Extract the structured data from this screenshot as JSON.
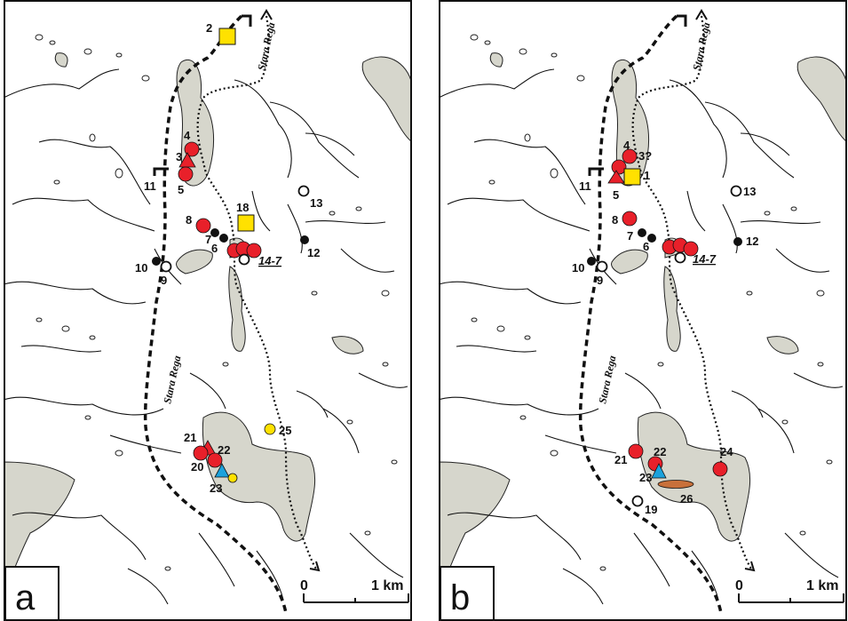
{
  "panels": [
    {
      "letter": "a",
      "river_label_top": "Stara Rega",
      "river_label_mid": "Stara Rega",
      "scale": {
        "zero": "0",
        "end": "1 km"
      },
      "sites": [
        {
          "label": "2",
          "type": "square"
        },
        {
          "label": "4",
          "type": "red"
        },
        {
          "label": "3",
          "type": "red-tri"
        },
        {
          "label": "5",
          "type": "red"
        },
        {
          "label": "11",
          "type": "tick"
        },
        {
          "label": "13",
          "type": "open"
        },
        {
          "label": "18",
          "type": "square"
        },
        {
          "label": "8",
          "type": "red"
        },
        {
          "label": "7",
          "type": "black"
        },
        {
          "label": "6",
          "type": "black"
        },
        {
          "label": "14-7",
          "type": "open"
        },
        {
          "label": "12",
          "type": "black"
        },
        {
          "label": "10",
          "type": "black"
        },
        {
          "label": "9",
          "type": "open"
        },
        {
          "label": "25",
          "type": "yellow"
        },
        {
          "label": "21",
          "type": "red-tri"
        },
        {
          "label": "22",
          "type": "red"
        },
        {
          "label": "20",
          "type": "red"
        },
        {
          "label": "23",
          "type": "blue-tri"
        }
      ]
    },
    {
      "letter": "b",
      "river_label_top": "Stara Rega",
      "river_label_mid": "Stara Rega",
      "scale": {
        "zero": "0",
        "end": "1 km"
      },
      "sites": [
        {
          "label": "4",
          "type": "red"
        },
        {
          "label": "3?",
          "type": "red"
        },
        {
          "label": "1",
          "type": "square"
        },
        {
          "label": "11",
          "type": "tick"
        },
        {
          "label": "5",
          "type": "red-tri"
        },
        {
          "label": "13",
          "type": "open"
        },
        {
          "label": "8",
          "type": "red"
        },
        {
          "label": "7",
          "type": "black"
        },
        {
          "label": "6",
          "type": "black"
        },
        {
          "label": "14-7",
          "type": "open"
        },
        {
          "label": "12",
          "type": "black"
        },
        {
          "label": "10",
          "type": "black"
        },
        {
          "label": "9",
          "type": "open"
        },
        {
          "label": "21",
          "type": "red"
        },
        {
          "label": "22",
          "type": "red"
        },
        {
          "label": "24",
          "type": "red"
        },
        {
          "label": "23",
          "type": "blue-tri"
        },
        {
          "label": "26",
          "type": "brown"
        },
        {
          "label": "19",
          "type": "open"
        }
      ]
    }
  ],
  "colors": {
    "lake": "#d6d6cc",
    "red": "#e8202a",
    "yellow": "#ffe100",
    "blue": "#1ba2dc",
    "brown": "#c8703a",
    "ink": "#111111"
  }
}
